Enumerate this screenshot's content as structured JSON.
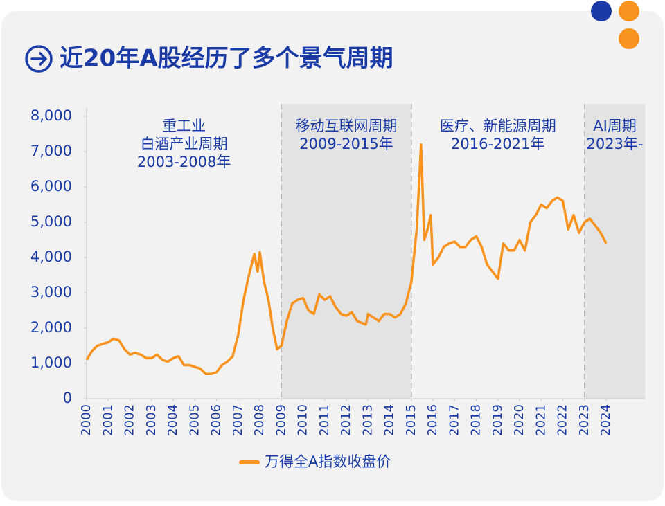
{
  "chart_data": {
    "type": "line",
    "title": "近20年A股经历了多个景气周期",
    "xlim": [
      2000,
      2025.8
    ],
    "xticks": [
      2000,
      2001,
      2002,
      2003,
      2004,
      2005,
      2006,
      2007,
      2008,
      2009,
      2010,
      2011,
      2012,
      2013,
      2014,
      2015,
      2016,
      2017,
      2018,
      2019,
      2020,
      2021,
      2022,
      2023,
      2024
    ],
    "ylim": [
      0,
      8000
    ],
    "yticks": [
      0,
      {
        "value": 1000,
        "label": "1,000"
      },
      {
        "value": 2000,
        "label": "2,000"
      },
      {
        "value": 3000,
        "label": "3,000"
      },
      {
        "value": 4000,
        "label": "4,000"
      },
      {
        "value": 5000,
        "label": "5,000"
      },
      {
        "value": 6000,
        "label": "6,000"
      },
      {
        "value": 7000,
        "label": "7,000"
      },
      {
        "value": 8000,
        "label": "8,000"
      }
    ],
    "periods": [
      {
        "lines": [
          "重工业",
          "白酒产业周期",
          "2003-2008年"
        ],
        "start": 2000,
        "end": 2009,
        "shaded": false
      },
      {
        "lines": [
          "移动互联网周期",
          "2009-2015年"
        ],
        "start": 2009,
        "end": 2015,
        "shaded": true
      },
      {
        "lines": [
          "医疗、新能源周期",
          "2016-2021年"
        ],
        "start": 2015,
        "end": 2023,
        "shaded": false
      },
      {
        "lines": [
          "AI周期",
          "2023年-"
        ],
        "start": 2023,
        "end": 2025.8,
        "shaded": true
      }
    ],
    "legend": "bottom",
    "series": [
      {
        "name": "万得全A指数收盘价",
        "color": "#f7931e",
        "x": [
          2000.0,
          2000.25,
          2000.5,
          2000.75,
          2001.0,
          2001.25,
          2001.5,
          2001.75,
          2002.0,
          2002.25,
          2002.5,
          2002.75,
          2003.0,
          2003.25,
          2003.5,
          2003.75,
          2004.0,
          2004.25,
          2004.5,
          2004.75,
          2005.0,
          2005.25,
          2005.5,
          2005.75,
          2006.0,
          2006.25,
          2006.5,
          2006.75,
          2007.0,
          2007.25,
          2007.5,
          2007.75,
          2007.9,
          2008.0,
          2008.2,
          2008.4,
          2008.6,
          2008.8,
          2009.0,
          2009.25,
          2009.5,
          2009.75,
          2010.0,
          2010.25,
          2010.5,
          2010.75,
          2011.0,
          2011.25,
          2011.5,
          2011.75,
          2012.0,
          2012.25,
          2012.5,
          2012.9,
          2013.0,
          2013.25,
          2013.5,
          2013.75,
          2014.0,
          2014.25,
          2014.5,
          2014.75,
          2015.0,
          2015.25,
          2015.45,
          2015.6,
          2015.75,
          2015.9,
          2016.0,
          2016.25,
          2016.5,
          2016.75,
          2017.0,
          2017.25,
          2017.5,
          2017.75,
          2018.0,
          2018.25,
          2018.5,
          2018.75,
          2019.0,
          2019.25,
          2019.5,
          2019.75,
          2020.0,
          2020.25,
          2020.5,
          2020.75,
          2021.0,
          2021.25,
          2021.5,
          2021.75,
          2022.0,
          2022.25,
          2022.5,
          2022.75,
          2023.0,
          2023.25,
          2023.5,
          2023.75,
          2024.0
        ],
        "values": [
          1100,
          1350,
          1500,
          1550,
          1600,
          1700,
          1650,
          1400,
          1250,
          1300,
          1250,
          1150,
          1150,
          1250,
          1100,
          1050,
          1150,
          1200,
          950,
          950,
          900,
          850,
          700,
          700,
          750,
          950,
          1050,
          1200,
          1800,
          2800,
          3500,
          4100,
          3600,
          4150,
          3300,
          2800,
          2000,
          1400,
          1500,
          2200,
          2700,
          2800,
          2850,
          2500,
          2400,
          2950,
          2800,
          2900,
          2600,
          2400,
          2350,
          2450,
          2200,
          2100,
          2400,
          2300,
          2200,
          2400,
          2400,
          2300,
          2400,
          2700,
          3300,
          4800,
          7200,
          4500,
          4800,
          5200,
          3800,
          4000,
          4300,
          4400,
          4450,
          4300,
          4300,
          4500,
          4600,
          4300,
          3800,
          3600,
          3400,
          4400,
          4200,
          4200,
          4500,
          4200,
          5000,
          5200,
          5500,
          5400,
          5600,
          5700,
          5600,
          4800,
          5200,
          4700,
          5000,
          5100,
          4900,
          4700,
          4400
        ]
      }
    ]
  }
}
